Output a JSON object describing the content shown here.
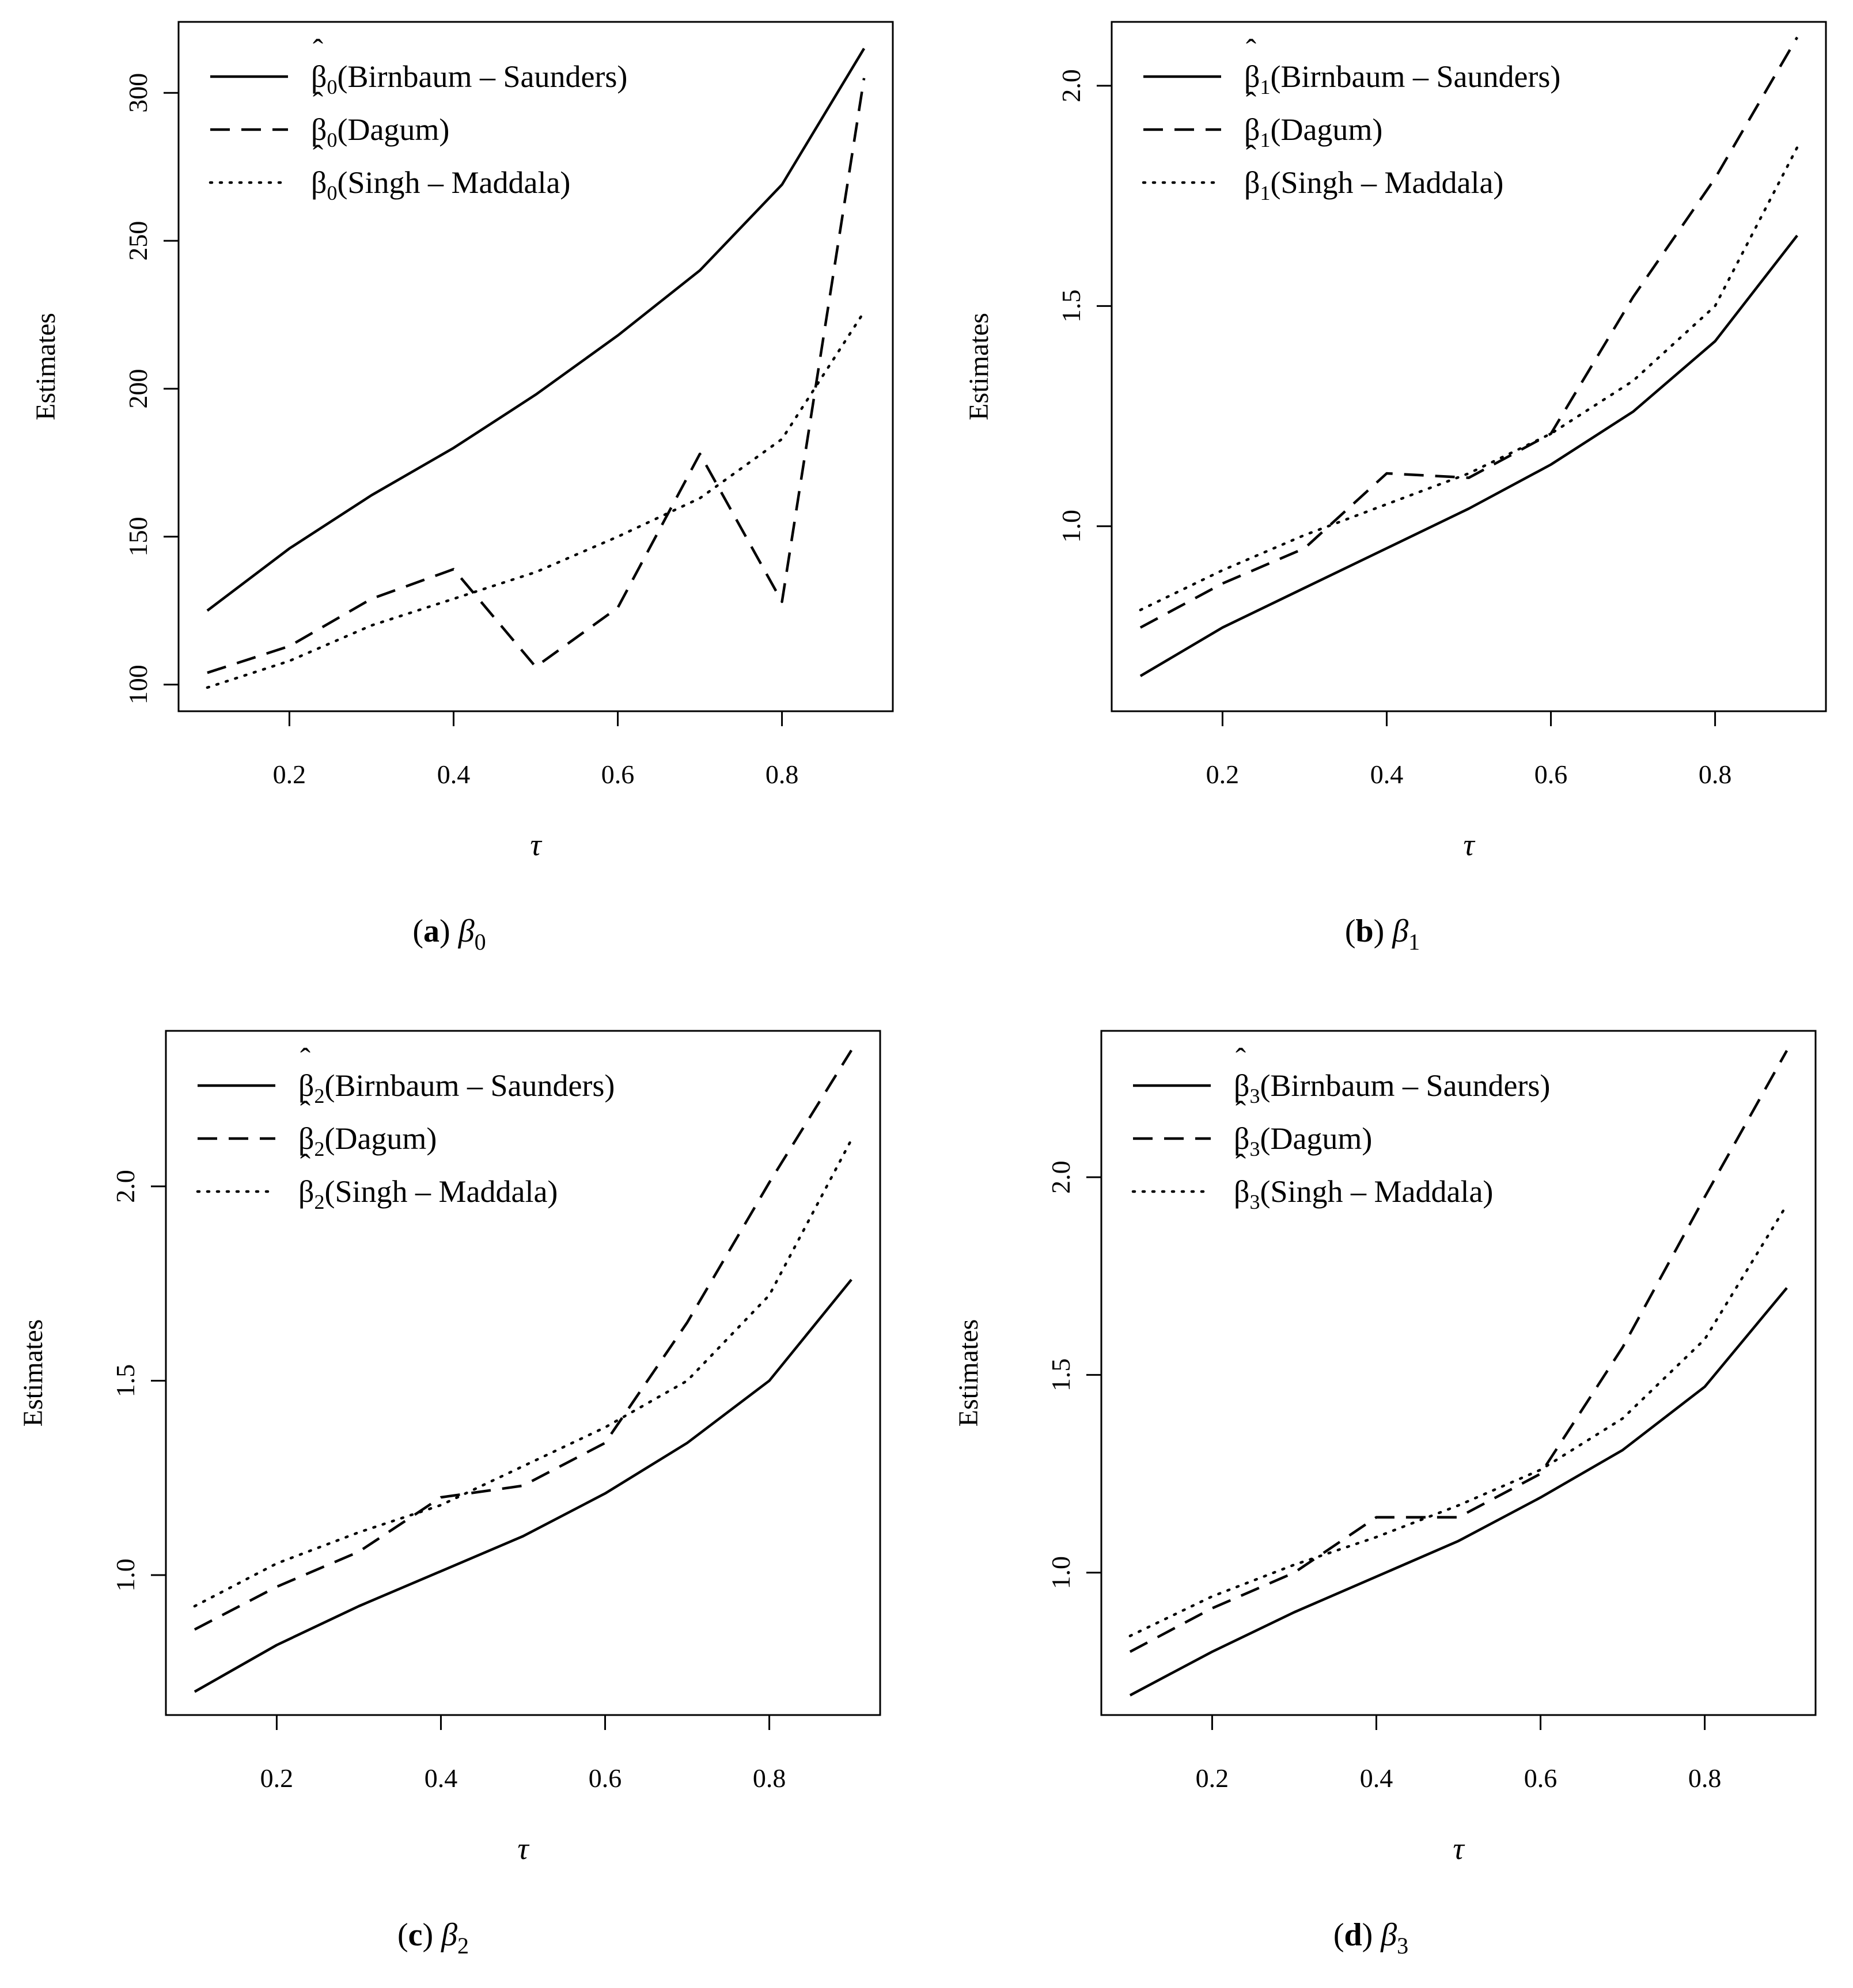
{
  "chart_data": [
    {
      "type": "line",
      "panel": "a",
      "caption": {
        "letter": "a",
        "symbol": "β",
        "sub": "0"
      },
      "xlabel": "τ",
      "ylabel": "Estimates",
      "x": [
        0.1,
        0.2,
        0.3,
        0.4,
        0.5,
        0.6,
        0.7,
        0.8,
        0.9
      ],
      "xlim": [
        0.065,
        0.935
      ],
      "ylim": [
        91,
        324
      ],
      "xticks": [
        "0.2",
        "0.4",
        "0.6",
        "0.8"
      ],
      "yticks": [
        "100",
        "150",
        "200",
        "250",
        "300"
      ],
      "legend": {
        "position": "top-left",
        "hat": "β",
        "sub": "0"
      },
      "series": [
        {
          "name": "Birnbaum – Saunders",
          "dash": "solid",
          "values": [
            125,
            146,
            164,
            180,
            198,
            218,
            240,
            269,
            315
          ]
        },
        {
          "name": "Dagum",
          "dash": "dashed",
          "values": [
            104,
            113,
            129,
            139,
            106,
            126,
            178,
            128,
            305
          ]
        },
        {
          "name": "Singh – Maddala",
          "dash": "dotted",
          "values": [
            99,
            108,
            120,
            129,
            138,
            150,
            163,
            183,
            226
          ]
        }
      ]
    },
    {
      "type": "line",
      "panel": "b",
      "caption": {
        "letter": "b",
        "symbol": "β",
        "sub": "1"
      },
      "xlabel": "τ",
      "ylabel": "Estimates",
      "x": [
        0.1,
        0.2,
        0.3,
        0.4,
        0.5,
        0.6,
        0.7,
        0.8,
        0.9
      ],
      "xlim": [
        0.065,
        0.935
      ],
      "ylim": [
        0.58,
        2.145
      ],
      "xticks": [
        "0.2",
        "0.4",
        "0.6",
        "0.8"
      ],
      "yticks": [
        "1.0",
        "1.5",
        "2.0"
      ],
      "legend": {
        "position": "top-left",
        "hat": "β",
        "sub": "1"
      },
      "series": [
        {
          "name": "Birnbaum – Saunders",
          "dash": "solid",
          "values": [
            0.66,
            0.77,
            0.86,
            0.95,
            1.04,
            1.14,
            1.26,
            1.42,
            1.66
          ]
        },
        {
          "name": "Dagum",
          "dash": "dashed",
          "values": [
            0.77,
            0.87,
            0.95,
            1.12,
            1.11,
            1.21,
            1.52,
            1.79,
            2.11
          ]
        },
        {
          "name": "Singh – Maddala",
          "dash": "dotted",
          "values": [
            0.81,
            0.9,
            0.98,
            1.05,
            1.12,
            1.21,
            1.33,
            1.5,
            1.86
          ]
        }
      ]
    },
    {
      "type": "line",
      "panel": "c",
      "caption": {
        "letter": "c",
        "symbol": "β",
        "sub": "2"
      },
      "xlabel": "τ",
      "ylabel": "Estimates",
      "x": [
        0.1,
        0.2,
        0.3,
        0.4,
        0.5,
        0.6,
        0.7,
        0.8,
        0.9
      ],
      "xlim": [
        0.065,
        0.935
      ],
      "ylim": [
        0.64,
        2.4
      ],
      "xticks": [
        "0.2",
        "0.4",
        "0.6",
        "0.8"
      ],
      "yticks": [
        "1.0",
        "1.5",
        "2.0"
      ],
      "legend": {
        "position": "top-left",
        "hat": "β",
        "sub": "2"
      },
      "series": [
        {
          "name": "Birnbaum – Saunders",
          "dash": "solid",
          "values": [
            0.7,
            0.82,
            0.92,
            1.01,
            1.1,
            1.21,
            1.34,
            1.5,
            1.76
          ]
        },
        {
          "name": "Dagum",
          "dash": "dashed",
          "values": [
            0.86,
            0.97,
            1.06,
            1.2,
            1.23,
            1.34,
            1.65,
            2.01,
            2.35
          ]
        },
        {
          "name": "Singh – Maddala",
          "dash": "dotted",
          "values": [
            0.92,
            1.03,
            1.11,
            1.18,
            1.28,
            1.38,
            1.5,
            1.72,
            2.12
          ]
        }
      ]
    },
    {
      "type": "line",
      "panel": "d",
      "caption": {
        "letter": "d",
        "symbol": "β",
        "sub": "3"
      },
      "xlabel": "τ",
      "ylabel": "Estimates",
      "x": [
        0.1,
        0.2,
        0.3,
        0.4,
        0.5,
        0.6,
        0.7,
        0.8,
        0.9
      ],
      "xlim": [
        0.065,
        0.935
      ],
      "ylim": [
        0.64,
        2.37
      ],
      "xticks": [
        "0.2",
        "0.4",
        "0.6",
        "0.8"
      ],
      "yticks": [
        "1.0",
        "1.5",
        "2.0"
      ],
      "legend": {
        "position": "top-left",
        "hat": "β",
        "sub": "3"
      },
      "series": [
        {
          "name": "Birnbaum – Saunders",
          "dash": "solid",
          "values": [
            0.69,
            0.8,
            0.9,
            0.99,
            1.08,
            1.19,
            1.31,
            1.47,
            1.72
          ]
        },
        {
          "name": "Dagum",
          "dash": "dashed",
          "values": [
            0.8,
            0.91,
            1.0,
            1.14,
            1.14,
            1.25,
            1.57,
            1.95,
            2.32
          ]
        },
        {
          "name": "Singh – Maddala",
          "dash": "dotted",
          "values": [
            0.84,
            0.94,
            1.02,
            1.09,
            1.17,
            1.26,
            1.39,
            1.59,
            1.93
          ]
        }
      ]
    }
  ]
}
